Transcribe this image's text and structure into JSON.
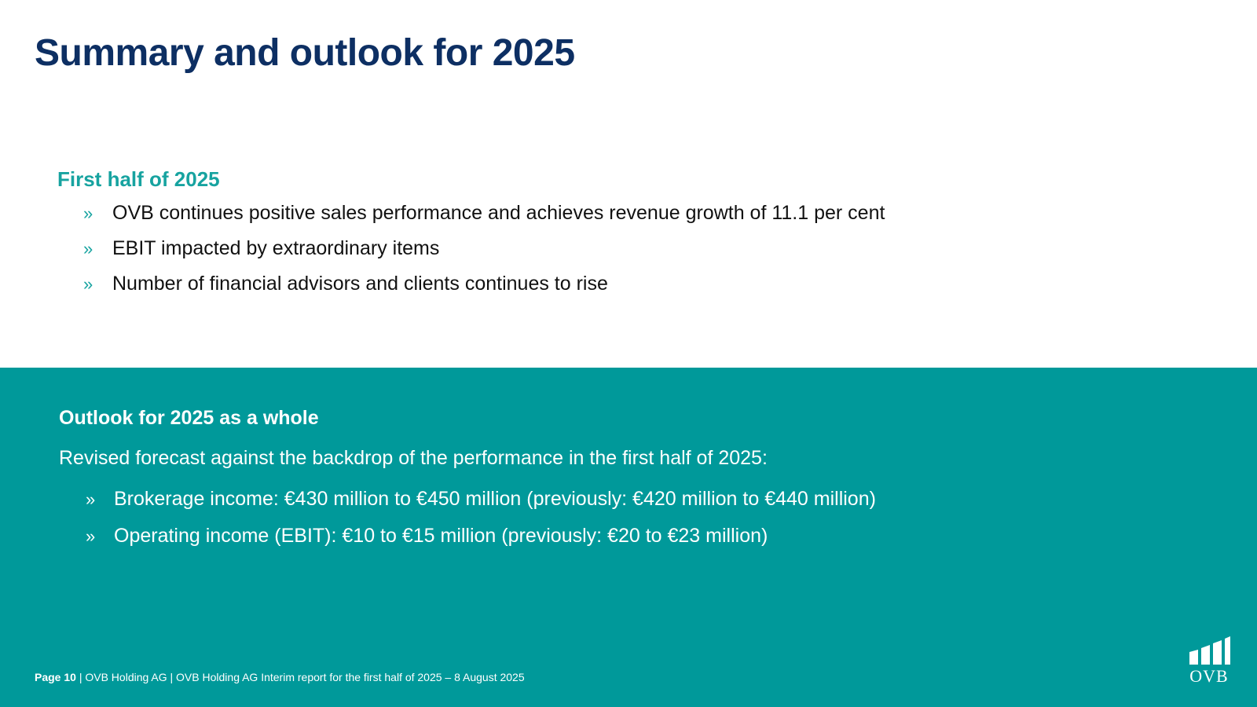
{
  "title": "Summary and outlook for 2025",
  "first_half": {
    "heading": "First half of 2025",
    "bullets": [
      "OVB continues positive sales performance and achieves revenue growth of 11.1 per cent",
      "EBIT impacted by extraordinary items",
      "Number of financial advisors and clients continues to rise"
    ]
  },
  "outlook": {
    "heading": "Outlook for 2025 as a whole",
    "intro": "Revised forecast against the backdrop of the performance in the first half of 2025:",
    "bullets": [
      "Brokerage income: €430 million to €450 million (previously: €420 million to €440 million)",
      "Operating income (EBIT): €10 to €15 million (previously: €20 to €23 million)"
    ]
  },
  "bullet_glyph": "»",
  "footer": {
    "page": "Page 10",
    "rest": " | OVB Holding AG |  OVB Holding AG Interim report for the first half of 2025 – 8 August 2025"
  },
  "logo": {
    "text": "OVB",
    "icon": "ovb-bars-icon"
  },
  "colors": {
    "navy": "#0d2f63",
    "teal": "#00999a",
    "teal_text": "#17a3a0"
  }
}
